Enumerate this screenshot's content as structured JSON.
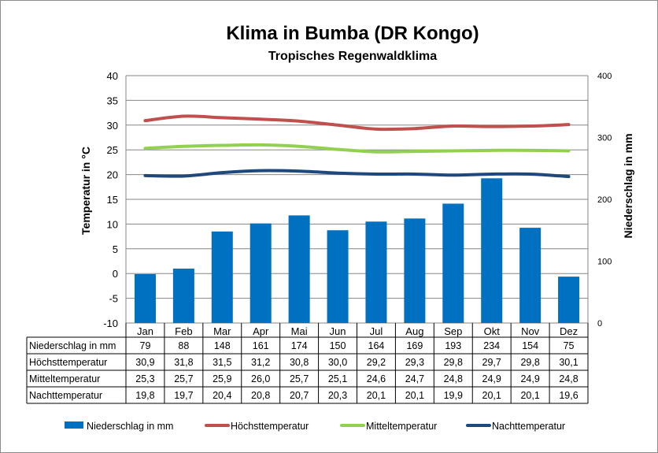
{
  "chart_data": {
    "type": "bar+line",
    "title": "Klima in Bumba (DR Kongo)",
    "subtitle": "Tropisches Regenwaldklima",
    "ylabel_left": "Temperatur in °C",
    "ylabel_right": "Niederschlag in mm",
    "ylim_left": [
      -10,
      40
    ],
    "yticks_left": [
      "40",
      "35",
      "30",
      "25",
      "20",
      "15",
      "10",
      "5",
      "0",
      "-5",
      "-10"
    ],
    "ylim_right": [
      0,
      400
    ],
    "yticks_right": [
      "400",
      "300",
      "200",
      "100",
      "0"
    ],
    "grid": true,
    "legend_position": "bottom",
    "categories": [
      "Jan",
      "Feb",
      "Mar",
      "Apr",
      "Mai",
      "Jun",
      "Jul",
      "Aug",
      "Sep",
      "Okt",
      "Nov",
      "Dez"
    ],
    "series": [
      {
        "name": "Niederschlag in mm",
        "type": "bar",
        "axis": "right",
        "color": "#0070C0",
        "values": [
          79,
          88,
          148,
          161,
          174,
          150,
          164,
          169,
          193,
          234,
          154,
          75
        ],
        "labels": [
          "79",
          "88",
          "148",
          "161",
          "174",
          "150",
          "164",
          "169",
          "193",
          "234",
          "154",
          "75"
        ]
      },
      {
        "name": "Höchsttemperatur",
        "type": "line",
        "axis": "left",
        "color": "#C0504D",
        "values": [
          30.9,
          31.8,
          31.5,
          31.2,
          30.8,
          30.0,
          29.2,
          29.3,
          29.8,
          29.7,
          29.8,
          30.1
        ],
        "labels": [
          "30,9",
          "31,8",
          "31,5",
          "31,2",
          "30,8",
          "30,0",
          "29,2",
          "29,3",
          "29,8",
          "29,7",
          "29,8",
          "30,1"
        ]
      },
      {
        "name": "Mitteltemperatur",
        "type": "line",
        "axis": "left",
        "color": "#92D050",
        "values": [
          25.3,
          25.7,
          25.9,
          26.0,
          25.7,
          25.1,
          24.6,
          24.7,
          24.8,
          24.9,
          24.9,
          24.8
        ],
        "labels": [
          "25,3",
          "25,7",
          "25,9",
          "26,0",
          "25,7",
          "25,1",
          "24,6",
          "24,7",
          "24,8",
          "24,9",
          "24,9",
          "24,8"
        ]
      },
      {
        "name": "Nachttemperatur",
        "type": "line",
        "axis": "left",
        "color": "#1F497D",
        "values": [
          19.8,
          19.7,
          20.4,
          20.8,
          20.7,
          20.3,
          20.1,
          20.1,
          19.9,
          20.1,
          20.1,
          19.6
        ],
        "labels": [
          "19,8",
          "19,7",
          "20,4",
          "20,8",
          "20,7",
          "20,3",
          "20,1",
          "20,1",
          "19,9",
          "20,1",
          "20,1",
          "19,6"
        ]
      }
    ]
  }
}
